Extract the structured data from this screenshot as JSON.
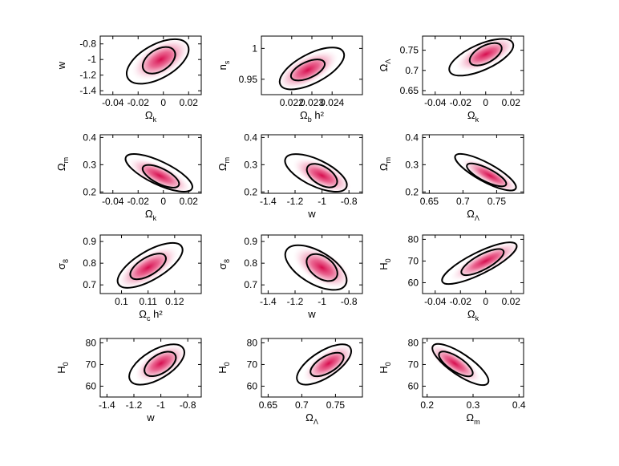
{
  "chart_data": [
    {
      "type": "contour",
      "xlabel": {
        "b": "Ω",
        "s": "k"
      },
      "ylabel": {
        "b": "w",
        "s": ""
      },
      "xlim": [
        -0.05,
        0.03
      ],
      "ylim": [
        -1.45,
        -0.7
      ],
      "xticks": [
        -0.04,
        -0.02,
        0,
        0.02
      ],
      "xtick_labels": [
        "-0.04",
        "-0.02",
        "0",
        "0.02"
      ],
      "yticks": [
        -1.4,
        -1.2,
        -1,
        -0.8
      ],
      "ytick_labels": [
        "-1.4",
        "-1.2",
        "-1",
        "-0.8"
      ],
      "center": [
        -0.002,
        -1.0
      ],
      "corr": 0.5,
      "contour_inner": {
        "x": [
          -0.019,
          0.012
        ],
        "y": [
          -1.17,
          -0.85
        ]
      },
      "contour_outer": {
        "x": [
          -0.035,
          0.026
        ],
        "y": [
          -1.3,
          -0.75
        ]
      }
    },
    {
      "type": "contour",
      "xlabel": {
        "b": "Ω",
        "s": "b",
        "t": " h²"
      },
      "ylabel": {
        "b": "n",
        "s": "s"
      },
      "xlim": [
        0.0205,
        0.0255
      ],
      "ylim": [
        0.925,
        1.02
      ],
      "xticks": [
        0.022,
        0.023,
        0.024
      ],
      "xtick_labels": [
        "0.022",
        "0.023",
        "0.024"
      ],
      "yticks": [
        0.95,
        1.0
      ],
      "ytick_labels": [
        "0.95",
        "1"
      ],
      "center": [
        0.0228,
        0.965
      ],
      "corr": 0.6,
      "contour_inner": {
        "x": [
          0.0218,
          0.0238
        ],
        "y": [
          0.95,
          0.98
        ]
      },
      "contour_outer": {
        "x": [
          0.0211,
          0.0249
        ],
        "y": [
          0.935,
          1.0
        ]
      }
    },
    {
      "type": "contour",
      "xlabel": {
        "b": "Ω",
        "s": "k"
      },
      "ylabel": {
        "b": "Ω",
        "s": "Λ"
      },
      "xlim": [
        -0.05,
        0.03
      ],
      "ylim": [
        0.64,
        0.785
      ],
      "xticks": [
        -0.04,
        -0.02,
        0,
        0.02
      ],
      "xtick_labels": [
        "-0.04",
        "-0.02",
        "0",
        "0.02"
      ],
      "yticks": [
        0.65,
        0.7,
        0.75
      ],
      "ytick_labels": [
        "0.65",
        "0.7",
        "0.75"
      ],
      "center": [
        0,
        0.74
      ],
      "corr": 0.6,
      "contour_inner": {
        "x": [
          -0.015,
          0.015
        ],
        "y": [
          0.715,
          0.765
        ]
      },
      "contour_outer": {
        "x": [
          -0.034,
          0.027
        ],
        "y": [
          0.69,
          0.775
        ]
      }
    },
    {
      "type": "contour",
      "xlabel": {
        "b": "Ω",
        "s": "k"
      },
      "ylabel": {
        "b": "Ω",
        "s": "m"
      },
      "xlim": [
        -0.05,
        0.03
      ],
      "ylim": [
        0.195,
        0.41
      ],
      "xticks": [
        -0.04,
        -0.02,
        0,
        0.02
      ],
      "xtick_labels": [
        "-0.04",
        "-0.02",
        "0",
        "0.02"
      ],
      "yticks": [
        0.2,
        0.3,
        0.4
      ],
      "ytick_labels": [
        "0.2",
        "0.3",
        "0.4"
      ],
      "center": [
        -0.003,
        0.26
      ],
      "corr": -0.75,
      "contour_inner": {
        "x": [
          -0.018,
          0.014
        ],
        "y": [
          0.22,
          0.295
        ]
      },
      "contour_outer": {
        "x": [
          -0.033,
          0.026
        ],
        "y": [
          0.205,
          0.335
        ]
      }
    },
    {
      "type": "contour",
      "xlabel": {
        "b": "w",
        "s": ""
      },
      "ylabel": {
        "b": "Ω",
        "s": "m"
      },
      "xlim": [
        -1.45,
        -0.7
      ],
      "ylim": [
        0.195,
        0.41
      ],
      "xticks": [
        -1.4,
        -1.2,
        -1,
        -0.8
      ],
      "xtick_labels": [
        "-1.4",
        "-1.2",
        "-1",
        "-0.8"
      ],
      "yticks": [
        0.2,
        0.3,
        0.4
      ],
      "ytick_labels": [
        "0.2",
        "0.3",
        "0.4"
      ],
      "center": [
        -1.0,
        0.26
      ],
      "corr": -0.6,
      "contour_inner": {
        "x": [
          -1.13,
          -0.87
        ],
        "y": [
          0.22,
          0.3
        ]
      },
      "contour_outer": {
        "x": [
          -1.32,
          -0.77
        ],
        "y": [
          0.205,
          0.335
        ]
      }
    },
    {
      "type": "contour",
      "xlabel": {
        "b": "Ω",
        "s": "Λ"
      },
      "ylabel": {
        "b": "Ω",
        "s": "m"
      },
      "xlim": [
        0.64,
        0.79
      ],
      "ylim": [
        0.195,
        0.41
      ],
      "xticks": [
        0.65,
        0.7,
        0.75
      ],
      "xtick_labels": [
        "0.65",
        "0.7",
        "0.75"
      ],
      "yticks": [
        0.2,
        0.3,
        0.4
      ],
      "ytick_labels": [
        "0.2",
        "0.3",
        "0.4"
      ],
      "center": [
        0.74,
        0.26
      ],
      "corr": -0.92,
      "contour_inner": {
        "x": [
          0.705,
          0.765
        ],
        "y": [
          0.225,
          0.3
        ]
      },
      "contour_outer": {
        "x": [
          0.687,
          0.78
        ],
        "y": [
          0.21,
          0.335
        ]
      }
    },
    {
      "type": "contour",
      "xlabel": {
        "b": "Ω",
        "s": "c",
        "t": " h²"
      },
      "ylabel": {
        "b": "σ",
        "s": "8"
      },
      "xlim": [
        0.092,
        0.13
      ],
      "ylim": [
        0.66,
        0.93
      ],
      "xticks": [
        0.1,
        0.11,
        0.12
      ],
      "xtick_labels": [
        "0.1",
        "0.11",
        "0.12"
      ],
      "yticks": [
        0.7,
        0.8,
        0.9
      ],
      "ytick_labels": [
        "0.7",
        "0.8",
        "0.9"
      ],
      "center": [
        0.11,
        0.78
      ],
      "corr": 0.7,
      "contour_inner": {
        "x": [
          0.1025,
          0.1175
        ],
        "y": [
          0.73,
          0.84
        ]
      },
      "contour_outer": {
        "x": [
          0.097,
          0.1245
        ],
        "y": [
          0.69,
          0.89
        ]
      }
    },
    {
      "type": "contour",
      "xlabel": {
        "b": "w",
        "s": ""
      },
      "ylabel": {
        "b": "σ",
        "s": "8"
      },
      "xlim": [
        -1.45,
        -0.7
      ],
      "ylim": [
        0.66,
        0.93
      ],
      "xticks": [
        -1.4,
        -1.2,
        -1,
        -0.8
      ],
      "xtick_labels": [
        "-1.4",
        "-1.2",
        "-1",
        "-0.8"
      ],
      "yticks": [
        0.7,
        0.8,
        0.9
      ],
      "ytick_labels": [
        "0.7",
        "0.8",
        "0.9"
      ],
      "center": [
        -1.0,
        0.78
      ],
      "corr": -0.55,
      "contour_inner": {
        "x": [
          -1.13,
          -0.87
        ],
        "y": [
          0.72,
          0.84
        ]
      },
      "contour_outer": {
        "x": [
          -1.32,
          -0.77
        ],
        "y": [
          0.68,
          0.88
        ]
      }
    },
    {
      "type": "contour",
      "xlabel": {
        "b": "Ω",
        "s": "k"
      },
      "ylabel": {
        "b": "H",
        "s": "0"
      },
      "xlim": [
        -0.05,
        0.03
      ],
      "ylim": [
        55,
        82
      ],
      "xticks": [
        -0.04,
        -0.02,
        0,
        0.02
      ],
      "xtick_labels": [
        "-0.04",
        "-0.02",
        "0",
        "0.02"
      ],
      "yticks": [
        60,
        70,
        80
      ],
      "ytick_labels": [
        "60",
        "70",
        "80"
      ],
      "center": [
        0,
        70
      ],
      "corr": 0.88,
      "contour_inner": {
        "x": [
          -0.02,
          0.015
        ],
        "y": [
          64,
          75
        ]
      },
      "contour_outer": {
        "x": [
          -0.036,
          0.026
        ],
        "y": [
          60,
          78
        ]
      }
    },
    {
      "type": "contour",
      "xlabel": {
        "b": "w",
        "s": ""
      },
      "ylabel": {
        "b": "H",
        "s": "0"
      },
      "xlim": [
        -1.45,
        -0.7
      ],
      "ylim": [
        55,
        82
      ],
      "xticks": [
        -1.4,
        -1.2,
        -1,
        -0.8
      ],
      "xtick_labels": [
        "-1.4",
        "-1.2",
        "-1",
        "-0.8"
      ],
      "yticks": [
        60,
        70,
        80
      ],
      "ytick_labels": [
        "60",
        "70",
        "80"
      ],
      "center": [
        -1.0,
        70.5
      ],
      "corr": 0.6,
      "contour_inner": {
        "x": [
          -1.14,
          -0.87
        ],
        "y": [
          65,
          75.5
        ]
      },
      "contour_outer": {
        "x": [
          -1.27,
          -0.79
        ],
        "y": [
          61,
          79
        ]
      }
    },
    {
      "type": "contour",
      "xlabel": {
        "b": "Ω",
        "s": "Λ"
      },
      "ylabel": {
        "b": "H",
        "s": "0"
      },
      "xlim": [
        0.64,
        0.79
      ],
      "ylim": [
        55,
        82
      ],
      "xticks": [
        0.65,
        0.7,
        0.75
      ],
      "xtick_labels": [
        "0.65",
        "0.7",
        "0.75"
      ],
      "yticks": [
        60,
        70,
        80
      ],
      "ytick_labels": [
        "60",
        "70",
        "80"
      ],
      "center": [
        0.74,
        70.5
      ],
      "corr": 0.7,
      "contour_inner": {
        "x": [
          0.71,
          0.765
        ],
        "y": [
          65,
          75
        ]
      },
      "contour_outer": {
        "x": [
          0.688,
          0.778
        ],
        "y": [
          61,
          79
        ]
      }
    },
    {
      "type": "contour",
      "xlabel": {
        "b": "Ω",
        "s": "m"
      },
      "ylabel": {
        "b": "H",
        "s": "0"
      },
      "xlim": [
        0.19,
        0.41
      ],
      "ylim": [
        55,
        82
      ],
      "xticks": [
        0.2,
        0.3,
        0.4
      ],
      "xtick_labels": [
        "0.2",
        "0.3",
        "0.4"
      ],
      "yticks": [
        60,
        70,
        80
      ],
      "ytick_labels": [
        "60",
        "70",
        "80"
      ],
      "center": [
        0.26,
        70.5
      ],
      "corr": -0.9,
      "contour_inner": {
        "x": [
          0.225,
          0.3
        ],
        "y": [
          65,
          75.5
        ]
      },
      "contour_outer": {
        "x": [
          0.21,
          0.335
        ],
        "y": [
          61,
          79
        ]
      }
    }
  ]
}
